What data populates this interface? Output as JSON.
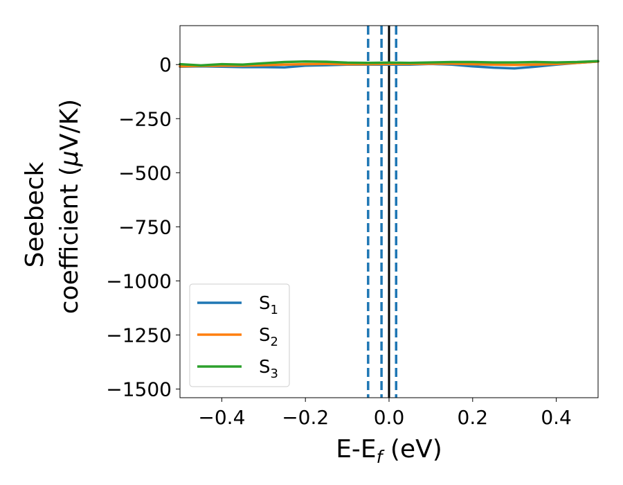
{
  "chart_data": {
    "type": "line",
    "xlabel": "E-E",
    "xlabel_sub": "f",
    "xlabel_unit": " (eV)",
    "ylabel_line1": "Seebeck",
    "ylabel_line2_prefix": "coefficient  (",
    "ylabel_mu": "μ",
    "ylabel_line2_suffix": "V/K)",
    "xlim": [
      -0.5,
      0.5
    ],
    "ylim": [
      -1540,
      180
    ],
    "xticks": [
      -0.4,
      -0.2,
      0.0,
      0.2,
      0.4
    ],
    "xtick_labels": [
      "−0.4",
      "−0.2",
      "0.0",
      "0.2",
      "0.4"
    ],
    "yticks": [
      0,
      -250,
      -500,
      -750,
      -1000,
      -1250,
      -1500
    ],
    "ytick_labels": [
      "0",
      "−250",
      "−500",
      "−750",
      "−1000",
      "−1250",
      "−1500"
    ],
    "grid": false,
    "legend_position": "lower-left",
    "vertical_lines": [
      {
        "x": -0.05,
        "style": "dashed",
        "color": "#1f77b4"
      },
      {
        "x": -0.018,
        "style": "dashed",
        "color": "#1f77b4"
      },
      {
        "x": 0.0,
        "style": "solid",
        "color": "#000000"
      },
      {
        "x": 0.017,
        "style": "dashed",
        "color": "#1f77b4"
      }
    ],
    "series": [
      {
        "name": "S",
        "sub": "1",
        "color": "#1f77b4",
        "x": [
          -0.5,
          -0.45,
          -0.4,
          -0.35,
          -0.3,
          -0.25,
          -0.2,
          -0.15,
          -0.1,
          -0.05,
          0.0,
          0.05,
          0.1,
          0.15,
          0.2,
          0.25,
          0.3,
          0.35,
          0.4,
          0.45,
          0.5
        ],
        "y": [
          -10,
          -8,
          -10,
          -12,
          -12,
          -13,
          -5,
          -3,
          0,
          0,
          0,
          0,
          3,
          0,
          -8,
          -14,
          -18,
          -10,
          0,
          8,
          14
        ]
      },
      {
        "name": "S",
        "sub": "2",
        "color": "#ff7f0e",
        "x": [
          -0.5,
          -0.45,
          -0.4,
          -0.35,
          -0.3,
          -0.25,
          -0.2,
          -0.15,
          -0.1,
          -0.05,
          0.0,
          0.05,
          0.1,
          0.15,
          0.2,
          0.25,
          0.3,
          0.35,
          0.4,
          0.45,
          0.5
        ],
        "y": [
          -8,
          -6,
          -5,
          -5,
          -3,
          0,
          2,
          3,
          2,
          2,
          3,
          3,
          4,
          4,
          2,
          0,
          -2,
          0,
          3,
          8,
          14
        ]
      },
      {
        "name": "S",
        "sub": "3",
        "color": "#2ca02c",
        "x": [
          -0.5,
          -0.45,
          -0.4,
          -0.35,
          -0.3,
          -0.25,
          -0.2,
          -0.15,
          -0.1,
          -0.05,
          0.0,
          0.05,
          0.1,
          0.15,
          0.2,
          0.25,
          0.3,
          0.35,
          0.4,
          0.45,
          0.5
        ],
        "y": [
          2,
          -4,
          2,
          0,
          6,
          12,
          14,
          13,
          9,
          8,
          9,
          8,
          10,
          12,
          12,
          10,
          10,
          12,
          10,
          12,
          16
        ]
      }
    ]
  }
}
